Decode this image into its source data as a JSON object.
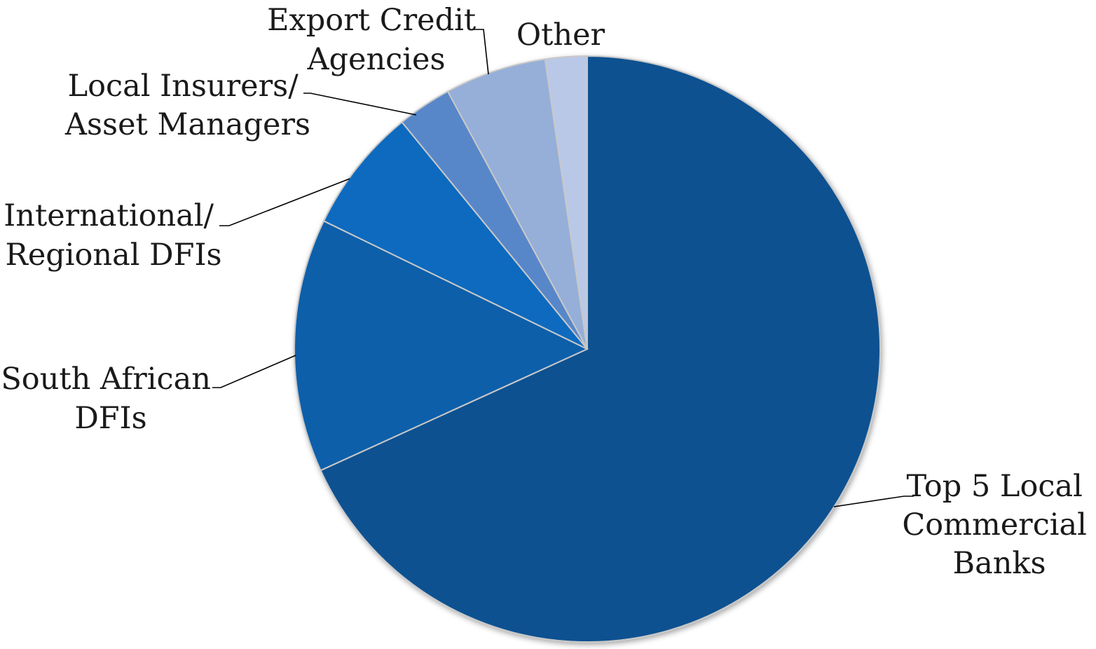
{
  "chart_data": {
    "type": "pie",
    "start_angle": "12 o'clock",
    "direction": "clockwise",
    "legend": "none (direct labels with leader lines)",
    "categories": [
      [
        "Top 5 Local",
        "Commercial",
        "Banks"
      ],
      [
        "South African",
        "DFIs"
      ],
      [
        "International/",
        "Regional DFIs"
      ],
      [
        "Local Insurers/",
        "Asset Managers"
      ],
      [
        "Export Credit",
        "Agencies"
      ],
      [
        "Other"
      ]
    ],
    "values": [
      68.2,
      14.0,
      6.9,
      3.0,
      5.6,
      2.3
    ],
    "colors": [
      "#0c5191",
      "#0e5faa",
      "#0f6bbf",
      "#5887c9",
      "#95afd9",
      "#b9c8e6"
    ]
  }
}
